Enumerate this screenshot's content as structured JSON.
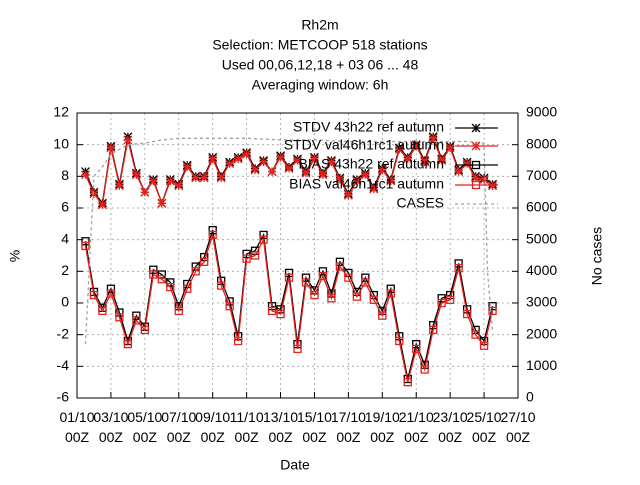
{
  "chart_data": {
    "type": "line",
    "title": [
      "Rh2m",
      "Selection: METCOOP    518 stations",
      "Used  00,06,12,18 + 03 06 ... 48",
      "Averaging window:  6h"
    ],
    "xlabel": "Date",
    "ylabel": "%",
    "y2label": "No cases",
    "xlim": [
      0,
      26
    ],
    "ylim": [
      -6,
      12
    ],
    "y2lim": [
      0,
      9000
    ],
    "grid": true,
    "legend": "top-right",
    "xticks": [
      {
        "value": 0,
        "label": "01/10 00Z"
      },
      {
        "value": 2,
        "label": "03/10 00Z"
      },
      {
        "value": 4,
        "label": "05/10 00Z"
      },
      {
        "value": 6,
        "label": "07/10 00Z"
      },
      {
        "value": 8,
        "label": "09/10 00Z"
      },
      {
        "value": 10,
        "label": "11/10 00Z"
      },
      {
        "value": 12,
        "label": "13/10 00Z"
      },
      {
        "value": 14,
        "label": "15/10 00Z"
      },
      {
        "value": 16,
        "label": "17/10 00Z"
      },
      {
        "value": 18,
        "label": "19/10 00Z"
      },
      {
        "value": 20,
        "label": "21/10 00Z"
      },
      {
        "value": 22,
        "label": "23/10 00Z"
      },
      {
        "value": 24,
        "label": "25/10 00Z"
      },
      {
        "value": 26,
        "label": "27/10 00Z"
      }
    ],
    "yticks": [
      -6,
      -4,
      -2,
      0,
      2,
      4,
      6,
      8,
      10,
      12
    ],
    "y2ticks": [
      0,
      1000,
      2000,
      3000,
      4000,
      5000,
      6000,
      7000,
      8000,
      9000
    ],
    "x": [
      0.5,
      1,
      1.5,
      2,
      2.5,
      3,
      3.5,
      4,
      4.5,
      5,
      5.5,
      6,
      6.5,
      7,
      7.5,
      8,
      8.5,
      9,
      9.5,
      10,
      10.5,
      11,
      11.5,
      12,
      12.5,
      13,
      13.5,
      14,
      14.5,
      15,
      15.5,
      16,
      16.5,
      17,
      17.5,
      18,
      18.5,
      19,
      19.5,
      20,
      20.5,
      21,
      21.5,
      22,
      22.5,
      23,
      23.5,
      24,
      24.5
    ],
    "series": [
      {
        "name": "STDV 43h22 ref autumn",
        "color": "#000000",
        "marker": "star",
        "values": [
          8.3,
          7.0,
          6.3,
          9.9,
          7.5,
          10.5,
          8.2,
          7.0,
          7.8,
          6.3,
          7.8,
          7.5,
          8.7,
          8.0,
          8.0,
          9.2,
          8.0,
          8.9,
          9.2,
          9.5,
          8.5,
          9.0,
          8.3,
          9.3,
          8.6,
          9.1,
          8.3,
          9.2,
          8.2,
          9.0,
          7.9,
          6.9,
          7.8,
          8.2,
          7.3,
          8.5,
          7.8,
          9.8,
          9.2,
          10.0,
          9.0,
          10.5,
          9.1,
          9.9,
          8.4,
          8.9,
          8.0,
          7.9,
          7.5
        ]
      },
      {
        "name": "STDV val46h1rc1 autumn",
        "color": "#e8201c",
        "marker": "star",
        "values": [
          8.1,
          6.9,
          6.2,
          9.8,
          7.4,
          10.3,
          8.1,
          7.0,
          7.7,
          6.3,
          7.7,
          7.4,
          8.6,
          7.9,
          7.9,
          9.1,
          7.9,
          8.8,
          9.1,
          9.4,
          8.4,
          8.9,
          8.3,
          9.2,
          8.5,
          9.0,
          8.2,
          9.1,
          8.1,
          8.9,
          7.8,
          6.8,
          7.7,
          8.1,
          7.2,
          8.4,
          7.7,
          9.7,
          9.1,
          9.9,
          8.9,
          10.4,
          9.0,
          9.8,
          8.3,
          8.8,
          7.9,
          7.8,
          7.4
        ]
      },
      {
        "name": "BIAS 43h22 ref autumn",
        "color": "#000000",
        "marker": "square",
        "values": [
          3.9,
          0.7,
          -0.3,
          0.9,
          -0.6,
          -2.4,
          -0.8,
          -1.5,
          2.1,
          1.8,
          1.3,
          -0.2,
          1.2,
          2.3,
          2.9,
          4.6,
          1.4,
          0.1,
          -2.1,
          3.1,
          3.3,
          4.3,
          -0.2,
          -0.4,
          1.9,
          -2.6,
          1.6,
          0.8,
          2.0,
          0.6,
          2.6,
          1.9,
          0.7,
          1.6,
          0.5,
          -0.5,
          0.9,
          -2.1,
          -4.8,
          -2.6,
          -3.9,
          -1.4,
          0.3,
          0.5,
          2.5,
          -0.4,
          -1.7,
          -2.4,
          -0.2
        ]
      },
      {
        "name": "BIAS val46h1rc1 autumn",
        "color": "#e8201c",
        "marker": "square",
        "values": [
          3.6,
          0.5,
          -0.5,
          0.6,
          -0.9,
          -2.6,
          -1.1,
          -1.7,
          1.8,
          1.5,
          1.0,
          -0.5,
          0.9,
          2.0,
          2.6,
          4.3,
          1.1,
          -0.2,
          -2.4,
          2.8,
          3.0,
          4.0,
          -0.5,
          -0.7,
          1.6,
          -2.9,
          1.3,
          0.5,
          1.7,
          0.3,
          2.3,
          1.6,
          0.4,
          1.3,
          0.2,
          -0.8,
          0.6,
          -2.4,
          -5.0,
          -2.9,
          -4.2,
          -1.7,
          0.0,
          0.2,
          2.2,
          -0.7,
          -2.0,
          -2.7,
          -0.5
        ]
      },
      {
        "name": "CASES",
        "color": "#a0a0a0",
        "marker": "none",
        "axis": "y2",
        "dash": true,
        "x": [
          0.5,
          1,
          1.5,
          2,
          3,
          4,
          5,
          6,
          8,
          10,
          12,
          14,
          16,
          18,
          20,
          22,
          23,
          24,
          24.2,
          24.5
        ],
        "values": [
          1700,
          7000,
          7300,
          7700,
          8000,
          8050,
          8150,
          8200,
          8200,
          8200,
          8150,
          8150,
          8100,
          8100,
          8100,
          8100,
          8100,
          8050,
          4000,
          2100
        ]
      }
    ]
  }
}
